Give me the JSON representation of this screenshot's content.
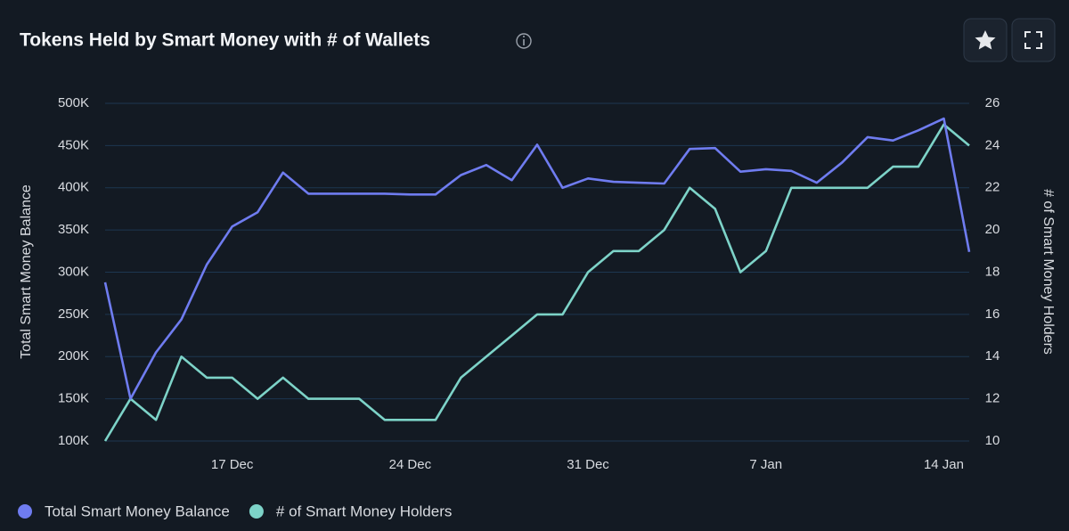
{
  "chart_data": {
    "type": "line",
    "title": "Tokens Held by Smart Money with # of Wallets",
    "ylabel": "Total Smart Money Balance",
    "y2label": "# of Smart Money Holders",
    "categories": [
      null,
      null,
      null,
      null,
      null,
      "17 Dec",
      null,
      null,
      null,
      null,
      null,
      null,
      "24 Dec",
      null,
      null,
      null,
      null,
      null,
      null,
      "31 Dec",
      null,
      null,
      null,
      null,
      null,
      null,
      "7 Jan",
      null,
      null,
      null,
      null,
      null,
      null,
      "14 Jan",
      null
    ],
    "ylim": [
      100000,
      500000
    ],
    "yticks": [
      {
        "value": 100000,
        "label": "100K"
      },
      {
        "value": 150000,
        "label": "150K"
      },
      {
        "value": 200000,
        "label": "200K"
      },
      {
        "value": 250000,
        "label": "250K"
      },
      {
        "value": 300000,
        "label": "300K"
      },
      {
        "value": 350000,
        "label": "350K"
      },
      {
        "value": 400000,
        "label": "400K"
      },
      {
        "value": 450000,
        "label": "450K"
      },
      {
        "value": 500000,
        "label": "500K"
      }
    ],
    "y2lim": [
      10,
      26
    ],
    "y2ticks": [
      10,
      12,
      14,
      16,
      18,
      20,
      22,
      24,
      26
    ],
    "grid": true,
    "legend": "bottom-left",
    "series": [
      {
        "name": "Total Smart Money Balance",
        "color": "#6f7cf0",
        "values": [
          288000,
          150000,
          205000,
          244000,
          309000,
          354000,
          371000,
          418000,
          393000,
          393000,
          393000,
          393000,
          392000,
          392000,
          415000,
          427000,
          409000,
          451000,
          400000,
          411000,
          407000,
          406000,
          405000,
          446000,
          447000,
          419000,
          422000,
          420000,
          406000,
          430000,
          460000,
          456000,
          468000,
          482000,
          324000
        ]
      },
      {
        "name": "# of Smart Money Holders",
        "color": "#7dd3c8",
        "axis": "y2",
        "values": [
          10,
          12,
          11,
          14,
          13,
          13,
          12,
          13,
          12,
          12,
          12,
          11,
          11,
          11,
          13,
          14,
          15,
          16,
          16,
          18,
          19,
          19,
          20,
          22,
          21,
          18,
          19,
          22,
          22,
          22,
          22,
          23,
          23,
          25,
          24
        ]
      }
    ]
  }
}
